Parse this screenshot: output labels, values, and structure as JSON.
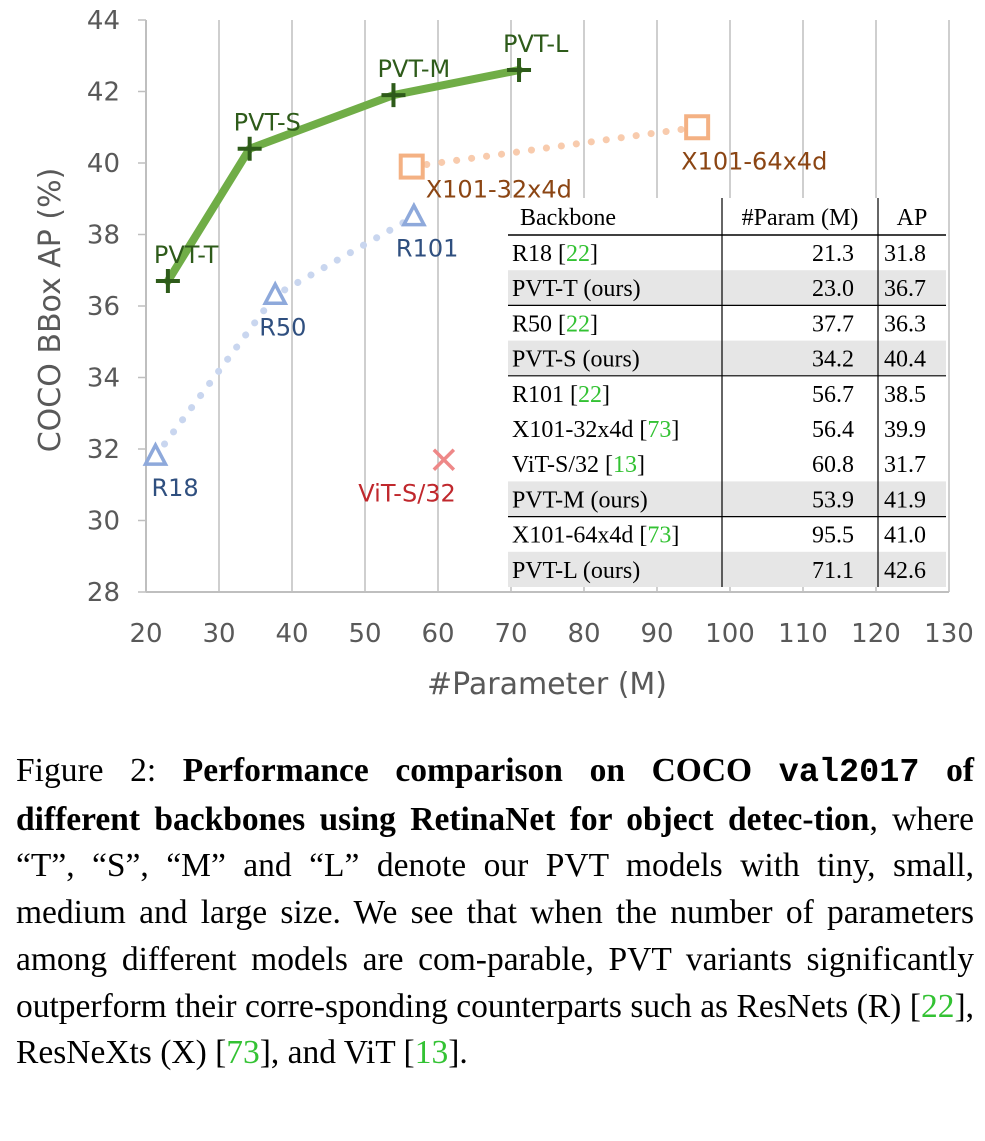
{
  "chart_data": {
    "type": "scatter",
    "xlabel": "#Parameter (M)",
    "ylabel": "COCO BBox AP (%)",
    "xlim": [
      20,
      130
    ],
    "ylim": [
      28,
      44
    ],
    "xticks": [
      "20",
      "30",
      "40",
      "50",
      "60",
      "70",
      "80",
      "90",
      "100",
      "110",
      "120",
      "130"
    ],
    "yticks": [
      "28",
      "30",
      "32",
      "34",
      "36",
      "38",
      "40",
      "42",
      "44"
    ],
    "grid": "vertical",
    "series": [
      {
        "name": "PVT",
        "style": "solid-line-plus",
        "color": "#70ad47",
        "marker_color": "#2e5b1a",
        "label_color": "#2e5b1a",
        "points": [
          {
            "label": "PVT-T",
            "x": 23.0,
            "y": 36.7
          },
          {
            "label": "PVT-S",
            "x": 34.2,
            "y": 40.4
          },
          {
            "label": "PVT-M",
            "x": 53.9,
            "y": 41.9
          },
          {
            "label": "PVT-L",
            "x": 71.1,
            "y": 42.6
          }
        ]
      },
      {
        "name": "ResNet",
        "style": "dotted-line-triangle",
        "color": "#c9d6ef",
        "marker_color": "#8ea9db",
        "label_color": "#2f4f7f",
        "points": [
          {
            "label": "R18",
            "x": 21.3,
            "y": 31.8
          },
          {
            "label": "R50",
            "x": 37.7,
            "y": 36.3
          },
          {
            "label": "R101",
            "x": 56.7,
            "y": 38.5
          }
        ]
      },
      {
        "name": "ResNeXt",
        "style": "dotted-line-square",
        "color": "#f8cbad",
        "marker_color": "#f4b183",
        "label_color": "#8b4513",
        "points": [
          {
            "label": "X101-32x4d",
            "x": 56.4,
            "y": 39.9
          },
          {
            "label": "X101-64x4d",
            "x": 95.5,
            "y": 41.0
          }
        ]
      },
      {
        "name": "ViT",
        "style": "cross",
        "color": "#ee8888",
        "marker_color": "#ee8888",
        "label_color": "#c0282d",
        "points": [
          {
            "label": "ViT-S/32",
            "x": 60.8,
            "y": 31.7
          }
        ]
      }
    ],
    "table": {
      "headers": [
        "Backbone",
        "#Param (M)",
        "AP"
      ],
      "rows": [
        {
          "name": "R18",
          "cite": "22",
          "param": "21.3",
          "ap": "31.8",
          "ours": false
        },
        {
          "name": "PVT-T (ours)",
          "cite": "",
          "param": "23.0",
          "ap": "36.7",
          "ours": true
        },
        {
          "name": "R50",
          "cite": "22",
          "param": "37.7",
          "ap": "36.3",
          "ours": false
        },
        {
          "name": "PVT-S (ours)",
          "cite": "",
          "param": "34.2",
          "ap": "40.4",
          "ours": true
        },
        {
          "name": "R101",
          "cite": "22",
          "param": "56.7",
          "ap": "38.5",
          "ours": false
        },
        {
          "name": "X101-32x4d",
          "cite": "73",
          "param": "56.4",
          "ap": "39.9",
          "ours": false
        },
        {
          "name": "ViT-S/32",
          "cite": "13",
          "param": "60.8",
          "ap": "31.7",
          "ours": false
        },
        {
          "name": "PVT-M (ours)",
          "cite": "",
          "param": "53.9",
          "ap": "41.9",
          "ours": true
        },
        {
          "name": "X101-64x4d",
          "cite": "73",
          "param": "95.5",
          "ap": "41.0",
          "ours": false
        },
        {
          "name": "PVT-L (ours)",
          "cite": "",
          "param": "71.1",
          "ap": "42.6",
          "ours": true
        }
      ],
      "group_breaks_after": [
        1,
        3,
        7
      ]
    }
  },
  "caption": {
    "prefix": "Figure 2: ",
    "bold_1": "Performance comparison on COCO ",
    "bold_mono": "val2017",
    "bold_2": " of different backbones using RetinaNet for object detec-tion",
    "text_1": ", where “T”, “S”, “M” and “L” denote our PVT models with tiny, small, medium and large size. We see that when the number of parameters among different models are com-parable, PVT variants significantly outperform their corre-sponding counterparts such as ResNets (R) [",
    "cite_1": "22",
    "text_2": "], ResNeXts (X) [",
    "cite_2": "73",
    "text_3": "], and ViT [",
    "cite_3": "13",
    "text_4": "]."
  },
  "colors": {
    "axis": "#bfbfbf",
    "text": "#595959",
    "cite": "#33c233",
    "ours_row_bg": "#e6e6e6"
  }
}
